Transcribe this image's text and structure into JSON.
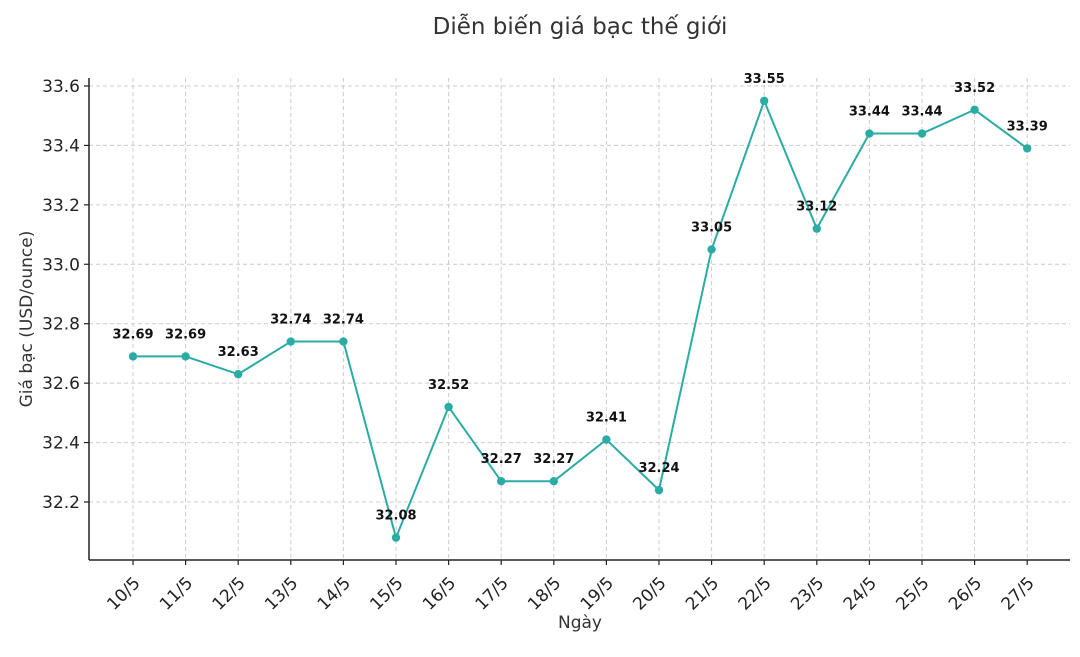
{
  "chart_data": {
    "type": "line",
    "title": "Diễn biến giá bạc thế giới",
    "xlabel": "Ngày",
    "ylabel": "Giá bạc (USD/ounce)",
    "categories": [
      "10/5",
      "11/5",
      "12/5",
      "13/5",
      "14/5",
      "15/5",
      "16/5",
      "17/5",
      "18/5",
      "19/5",
      "20/5",
      "21/5",
      "22/5",
      "23/5",
      "24/5",
      "25/5",
      "26/5",
      "27/5"
    ],
    "series": [
      {
        "values": [
          32.69,
          32.69,
          32.63,
          32.74,
          32.74,
          32.08,
          32.52,
          32.27,
          32.27,
          32.41,
          32.24,
          33.05,
          33.55,
          33.12,
          33.44,
          33.44,
          33.52,
          33.39
        ],
        "labels": [
          "32.69",
          "32.69",
          "32.63",
          "32.74",
          "32.74",
          "32.08",
          "32.52",
          "32.27",
          "32.27",
          "32.41",
          "32.24",
          "33.05",
          "33.55",
          "33.12",
          "33.44",
          "33.44",
          "33.52",
          "33.39"
        ],
        "color": "#2aaca5"
      }
    ],
    "yticks": [
      "32.2",
      "32.4",
      "32.6",
      "32.8",
      "33.0",
      "33.2",
      "33.4",
      "33.6"
    ],
    "ylim": [
      32.02,
      33.63
    ],
    "grid": true,
    "marker": "circle"
  }
}
